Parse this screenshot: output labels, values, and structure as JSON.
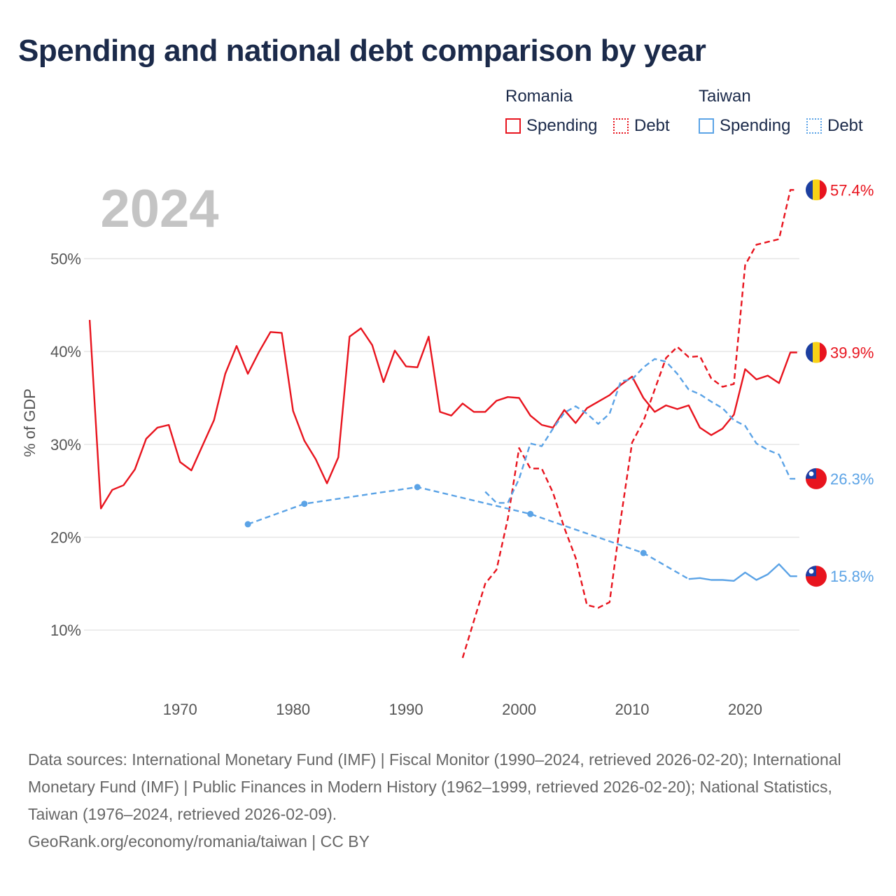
{
  "title": "Spending and national debt comparison by year",
  "legend": {
    "groups": [
      {
        "country": "Romania",
        "color": "#e8141e",
        "spending_label": "Spending",
        "debt_label": "Debt"
      },
      {
        "country": "Taiwan",
        "color": "#5ba3e6",
        "spending_label": "Spending",
        "debt_label": "Debt"
      }
    ]
  },
  "chart_data": {
    "type": "line",
    "title": "Spending and national debt comparison by year",
    "overlay_year": "2024",
    "xlabel": "",
    "ylabel": "% of GDP",
    "xlim": [
      1961.5,
      2024.8
    ],
    "ylim": [
      3,
      57.5
    ],
    "x_ticks": [
      1970,
      1980,
      1990,
      2000,
      2010,
      2020
    ],
    "x_tick_labels": [
      "1970",
      "1980",
      "1990",
      "2000",
      "2010",
      "2020"
    ],
    "y_ticks": [
      10,
      20,
      30,
      40,
      50
    ],
    "y_tick_labels": [
      "10%",
      "20%",
      "30%",
      "40%",
      "50%"
    ],
    "grid": true,
    "series": [
      {
        "name": "Romania Spending",
        "color": "#e8141e",
        "style": "solid",
        "end_label": "39.9%",
        "end_icon": "romania-flag-icon",
        "points": [
          [
            1962,
            43.4
          ],
          [
            1963,
            23.1
          ],
          [
            1964,
            25.1
          ],
          [
            1965,
            25.6
          ],
          [
            1966,
            27.3
          ],
          [
            1967,
            30.6
          ],
          [
            1968,
            31.8
          ],
          [
            1969,
            32.1
          ],
          [
            1970,
            28.1
          ],
          [
            1971,
            27.2
          ],
          [
            1972,
            29.9
          ],
          [
            1973,
            32.6
          ],
          [
            1974,
            37.6
          ],
          [
            1975,
            40.6
          ],
          [
            1976,
            37.6
          ],
          [
            1977,
            40.0
          ],
          [
            1978,
            42.1
          ],
          [
            1979,
            42.0
          ],
          [
            1980,
            33.6
          ],
          [
            1981,
            30.4
          ],
          [
            1982,
            28.4
          ],
          [
            1983,
            25.8
          ],
          [
            1984,
            28.6
          ],
          [
            1985,
            41.6
          ],
          [
            1986,
            42.5
          ],
          [
            1987,
            40.7
          ],
          [
            1988,
            36.7
          ],
          [
            1989,
            40.1
          ],
          [
            1990,
            38.4
          ],
          [
            1991,
            38.3
          ],
          [
            1992,
            41.6
          ],
          [
            1993,
            33.5
          ],
          [
            1994,
            33.1
          ],
          [
            1995,
            34.4
          ],
          [
            1996,
            33.5
          ],
          [
            1997,
            33.5
          ],
          [
            1998,
            34.7
          ],
          [
            1999,
            35.1
          ],
          [
            2000,
            35.0
          ],
          [
            2001,
            33.1
          ],
          [
            2002,
            32.1
          ],
          [
            2003,
            31.8
          ],
          [
            2004,
            33.7
          ],
          [
            2005,
            32.3
          ],
          [
            2006,
            33.9
          ],
          [
            2007,
            34.6
          ],
          [
            2008,
            35.3
          ],
          [
            2009,
            36.4
          ],
          [
            2010,
            37.3
          ],
          [
            2011,
            35.0
          ],
          [
            2012,
            33.5
          ],
          [
            2013,
            34.2
          ],
          [
            2014,
            33.8
          ],
          [
            2015,
            34.2
          ],
          [
            2016,
            31.8
          ],
          [
            2017,
            31.0
          ],
          [
            2018,
            31.7
          ],
          [
            2019,
            33.2
          ],
          [
            2020,
            38.1
          ],
          [
            2021,
            37.0
          ],
          [
            2022,
            37.4
          ],
          [
            2023,
            36.6
          ],
          [
            2024,
            39.9
          ],
          [
            2024.6,
            39.9
          ]
        ]
      },
      {
        "name": "Romania Debt",
        "color": "#e8141e",
        "style": "dashed",
        "end_label": "57.4%",
        "end_icon": "romania-flag-icon",
        "points": [
          [
            1995,
            7.0
          ],
          [
            1996,
            11.0
          ],
          [
            1997,
            15.0
          ],
          [
            1998,
            16.5
          ],
          [
            1999,
            22.0
          ],
          [
            2000,
            29.6
          ],
          [
            2001,
            27.4
          ],
          [
            2002,
            27.4
          ],
          [
            2003,
            24.8
          ],
          [
            2004,
            21.0
          ],
          [
            2005,
            17.8
          ],
          [
            2006,
            12.7
          ],
          [
            2007,
            12.4
          ],
          [
            2008,
            13.0
          ],
          [
            2009,
            22.0
          ],
          [
            2010,
            30.2
          ],
          [
            2011,
            32.5
          ],
          [
            2012,
            35.9
          ],
          [
            2013,
            39.3
          ],
          [
            2014,
            40.5
          ],
          [
            2015,
            39.4
          ],
          [
            2016,
            39.5
          ],
          [
            2017,
            37.1
          ],
          [
            2018,
            36.2
          ],
          [
            2019,
            36.5
          ],
          [
            2020,
            49.3
          ],
          [
            2021,
            51.5
          ],
          [
            2022,
            51.8
          ],
          [
            2023,
            52.1
          ],
          [
            2024,
            57.4
          ],
          [
            2024.6,
            57.4
          ]
        ]
      },
      {
        "name": "Taiwan Spending",
        "color": "#5ba3e6",
        "style": "solid",
        "end_label": "15.8%",
        "end_icon": "taiwan-flag-icon",
        "points": [
          [
            2015,
            15.5
          ],
          [
            2016,
            15.6
          ],
          [
            2017,
            15.4
          ],
          [
            2018,
            15.4
          ],
          [
            2019,
            15.3
          ],
          [
            2020,
            16.2
          ],
          [
            2021,
            15.4
          ],
          [
            2022,
            16.0
          ],
          [
            2023,
            17.1
          ],
          [
            2024,
            15.8
          ],
          [
            2024.6,
            15.8
          ]
        ]
      },
      {
        "name": "Taiwan Spending (interpolated)",
        "color": "#5ba3e6",
        "style": "dashed",
        "markers": [
          1976,
          1981,
          1991,
          2001,
          2011
        ],
        "points": [
          [
            1976,
            21.4
          ],
          [
            1981,
            23.6
          ],
          [
            1991,
            25.4
          ],
          [
            2001,
            22.5
          ],
          [
            2011,
            18.3
          ],
          [
            2015,
            15.5
          ]
        ]
      },
      {
        "name": "Taiwan Debt",
        "color": "#5ba3e6",
        "style": "dashed",
        "end_label": "26.3%",
        "end_icon": "taiwan-flag-icon",
        "points": [
          [
            1997,
            24.9
          ],
          [
            1998,
            23.7
          ],
          [
            1999,
            23.7
          ],
          [
            2000,
            26.3
          ],
          [
            2001,
            30.1
          ],
          [
            2002,
            29.8
          ],
          [
            2003,
            31.7
          ],
          [
            2004,
            33.4
          ],
          [
            2005,
            34.1
          ],
          [
            2006,
            33.3
          ],
          [
            2007,
            32.2
          ],
          [
            2008,
            33.3
          ],
          [
            2009,
            36.8
          ],
          [
            2010,
            37.0
          ],
          [
            2011,
            38.3
          ],
          [
            2012,
            39.2
          ],
          [
            2013,
            38.9
          ],
          [
            2014,
            37.6
          ],
          [
            2015,
            35.9
          ],
          [
            2016,
            35.4
          ],
          [
            2017,
            34.6
          ],
          [
            2018,
            33.9
          ],
          [
            2019,
            32.6
          ],
          [
            2020,
            32.0
          ],
          [
            2021,
            30.1
          ],
          [
            2022,
            29.4
          ],
          [
            2023,
            28.9
          ],
          [
            2024,
            26.3
          ],
          [
            2024.6,
            26.3
          ]
        ]
      }
    ]
  },
  "footer": {
    "sources": "Data sources: International Monetary Fund (IMF) | Fiscal Monitor (1990–2024, retrieved 2026-02-20); International Monetary Fund (IMF) | Public Finances in Modern History (1962–1999, retrieved 2026-02-20); National Statistics, Taiwan (1976–2024, retrieved 2026-02-09).",
    "credit": "GeoRank.org/economy/romania/taiwan | CC BY"
  }
}
